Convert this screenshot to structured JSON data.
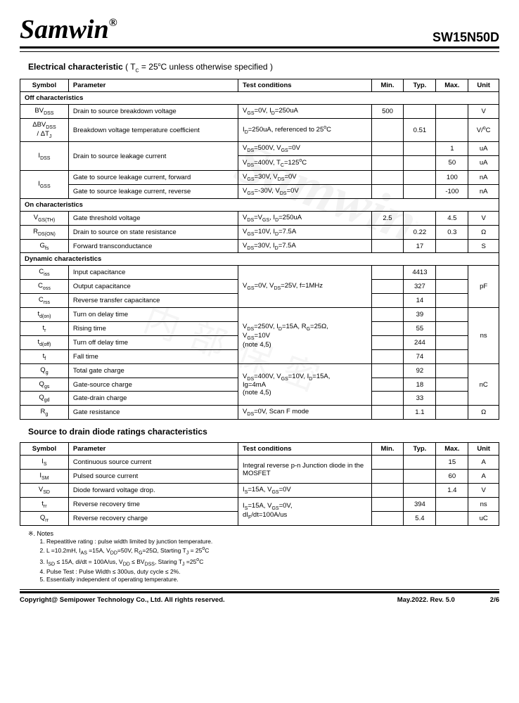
{
  "header": {
    "logo_text": "Samwin",
    "logo_sup": "®",
    "part_number": "SW15N50D"
  },
  "section1": {
    "title": "Electrical characteristic",
    "condition": " ( T_C = 25°C unless otherwise specified )",
    "columns": {
      "c1": "Symbol",
      "c2": "Parameter",
      "c3": "Test conditions",
      "c4": "Min.",
      "c5": "Typ.",
      "c6": "Max.",
      "c7": "Unit"
    },
    "group_off": "Off characteristics",
    "rows_off": [
      {
        "sym": "BV_DSS",
        "param": "Drain to source breakdown voltage",
        "cond": "V_GS=0V, I_D=250uA",
        "min": "500",
        "typ": "",
        "max": "",
        "unit": "V"
      },
      {
        "sym": "ΔBV_DSS / ΔT_J",
        "param": "Breakdown voltage temperature coefficient",
        "cond": "I_D=250uA, referenced to 25°C",
        "min": "",
        "typ": "0.51",
        "max": "",
        "unit": "V/°C"
      },
      {
        "sym": "I_DSS",
        "param": "Drain to source leakage current",
        "cond": "V_DS=500V, V_GS=0V",
        "min": "",
        "typ": "",
        "max": "1",
        "unit": "uA",
        "rowspan": 2
      },
      {
        "sym": "",
        "param": "",
        "cond": "V_DS=400V, T_C=125°C",
        "min": "",
        "typ": "",
        "max": "50",
        "unit": "uA"
      },
      {
        "sym": "I_GSS",
        "param": "Gate to source leakage current, forward",
        "cond": "V_GS=30V, V_DS=0V",
        "min": "",
        "typ": "",
        "max": "100",
        "unit": "nA",
        "rowspan": 2
      },
      {
        "sym": "",
        "param": "Gate to source leakage current, reverse",
        "cond": "V_GS=-30V, V_DS=0V",
        "min": "",
        "typ": "",
        "max": "-100",
        "unit": "nA"
      }
    ],
    "group_on": "On characteristics",
    "rows_on": [
      {
        "sym": "V_GS(TH)",
        "param": "Gate threshold voltage",
        "cond": "V_DS=V_GS, I_D=250uA",
        "min": "2.5",
        "typ": "",
        "max": "4.5",
        "unit": "V"
      },
      {
        "sym": "R_DS(ON)",
        "param": "Drain to source on state resistance",
        "cond": "V_GS=10V, I_D=7.5A",
        "min": "",
        "typ": "0.22",
        "max": "0.3",
        "unit": "Ω"
      },
      {
        "sym": "G_fs",
        "param": "Forward transconductance",
        "cond": "V_DS=30V, I_D=7.5A",
        "min": "",
        "typ": "17",
        "max": "",
        "unit": "S"
      }
    ],
    "group_dyn": "Dynamic characteristics",
    "rows_dyn_cap": [
      {
        "sym": "C_iss",
        "param": "Input capacitance",
        "typ": "4413"
      },
      {
        "sym": "C_oss",
        "param": "Output capacitance",
        "typ": "327"
      },
      {
        "sym": "C_rss",
        "param": "Reverse transfer capacitance",
        "typ": "14"
      }
    ],
    "cond_cap": "V_GS=0V, V_DS=25V, f=1MHz",
    "unit_cap": "pF",
    "rows_dyn_time": [
      {
        "sym": "t_d(on)",
        "param": "Turn on delay time",
        "typ": "39"
      },
      {
        "sym": "t_r",
        "param": "Rising time",
        "typ": "55"
      },
      {
        "sym": "t_d(off)",
        "param": "Turn off delay time",
        "typ": "244"
      },
      {
        "sym": "t_f",
        "param": "Fall time",
        "typ": "74"
      }
    ],
    "cond_time": "V_DS=250V, I_D=15A, R_G=25Ω, V_GS=10V\n(note 4,5)",
    "unit_time": "ns",
    "rows_dyn_charge": [
      {
        "sym": "Q_g",
        "param": "Total gate charge",
        "typ": "92"
      },
      {
        "sym": "Q_gs",
        "param": "Gate-source charge",
        "typ": "18"
      },
      {
        "sym": "Q_gd",
        "param": "Gate-drain charge",
        "typ": "33"
      }
    ],
    "cond_charge": "V_DS=400V, V_GS=10V, I_D=15A, Ig=4mA\n(note 4,5)",
    "unit_charge": "nC",
    "row_rg": {
      "sym": "R_g",
      "param": "Gate resistance",
      "cond": "V_DS=0V, Scan F mode",
      "min": "",
      "typ": "1.1",
      "max": "",
      "unit": "Ω"
    }
  },
  "section2": {
    "title": "Source to drain diode ratings characteristics",
    "columns": {
      "c1": "Symbol",
      "c2": "Parameter",
      "c3": "Test conditions",
      "c4": "Min.",
      "c5": "Typ.",
      "c6": "Max.",
      "c7": "Unit"
    },
    "cond_diode": "Integral reverse p-n Junction diode in the MOSFET",
    "rows": [
      {
        "sym": "I_S",
        "param": "Continuous source current",
        "min": "",
        "typ": "",
        "max": "15",
        "unit": "A"
      },
      {
        "sym": "I_SM",
        "param": "Pulsed source current",
        "min": "",
        "typ": "",
        "max": "60",
        "unit": "A"
      },
      {
        "sym": "V_SD",
        "param": "Diode forward voltage drop.",
        "cond": "I_S=15A, V_GS=0V",
        "min": "",
        "typ": "",
        "max": "1.4",
        "unit": "V"
      },
      {
        "sym": "t_rr",
        "param": "Reverse recovery time",
        "min": "",
        "typ": "394",
        "max": "",
        "unit": "ns"
      },
      {
        "sym": "Q_rr",
        "param": "Reverse recovery charge",
        "min": "",
        "typ": "5.4",
        "max": "",
        "unit": "uC"
      }
    ],
    "cond_rr": "I_S=15A, V_GS=0V, dI_F/dt=100A/us"
  },
  "notes": {
    "header": "※. Notes",
    "items": [
      "Repeatitive rating : pulse width limited by junction temperature.",
      "L =10.2mH, I_AS =15A, V_DD=50V, R_G=25Ω, Starting T_J = 25°C",
      "I_SD ≤ 15A, di/dt = 100A/us, V_DD ≤ BV_DSS, Staring T_J =25°C",
      "Pulse Test : Pulse Width ≤ 300us, duty cycle ≤ 2%.",
      "Essentially independent of operating temperature."
    ]
  },
  "footer": {
    "copyright": "Copyright@ Semipower Technology Co., Ltd. All rights reserved.",
    "date": "May.2022. Rev. 5.0",
    "page": "2/6"
  }
}
